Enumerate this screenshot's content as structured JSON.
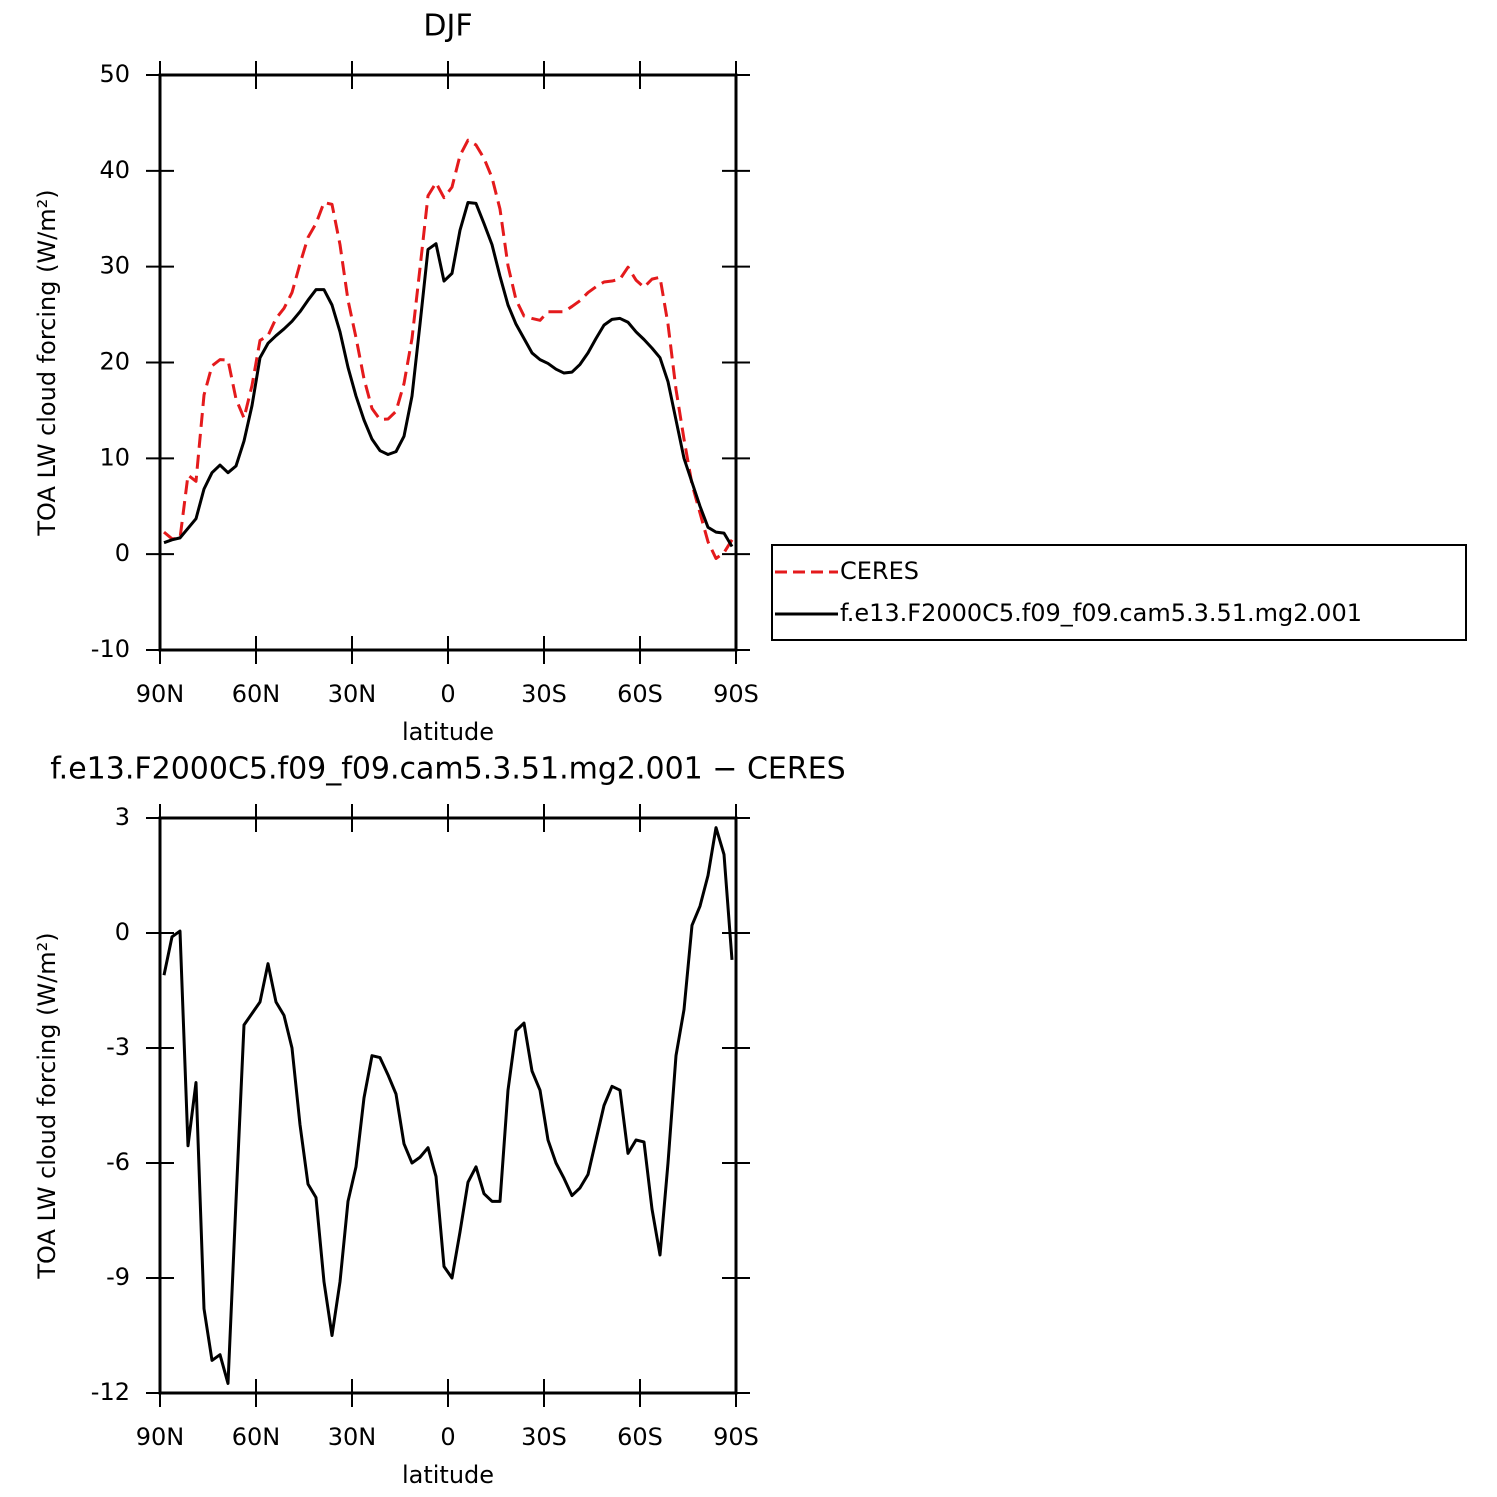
{
  "chart_data": [
    {
      "type": "line",
      "title": "DJF",
      "xlabel": "latitude",
      "ylabel": "TOA LW cloud forcing (W/m²)",
      "x": [
        88.75,
        86.25,
        83.75,
        81.25,
        78.75,
        76.25,
        73.75,
        71.25,
        68.75,
        66.25,
        63.75,
        61.25,
        58.75,
        56.25,
        53.75,
        51.25,
        48.75,
        46.25,
        43.75,
        41.25,
        38.75,
        36.25,
        33.75,
        31.25,
        28.75,
        26.25,
        23.75,
        21.25,
        18.75,
        16.25,
        13.75,
        11.25,
        8.75,
        6.25,
        3.75,
        1.25,
        -1.25,
        -3.75,
        -6.25,
        -8.75,
        -11.25,
        -13.75,
        -16.25,
        -18.75,
        -21.25,
        -23.75,
        -26.25,
        -28.75,
        -31.25,
        -33.75,
        -36.25,
        -38.75,
        -41.25,
        -43.75,
        -46.25,
        -48.75,
        -51.25,
        -53.75,
        -56.25,
        -58.75,
        -61.25,
        -63.75,
        -66.25,
        -68.75,
        -71.25,
        -73.75,
        -76.25,
        -78.75,
        -81.25,
        -83.75,
        -86.25,
        -88.75
      ],
      "series": [
        {
          "name": "CERES",
          "color": "#e41a1c",
          "dashed": true,
          "values": [
            2.3,
            1.6,
            1.65,
            8.25,
            7.6,
            16.6,
            19.65,
            20.3,
            20.25,
            16.2,
            14.2,
            17.6,
            22.3,
            22.8,
            24.6,
            25.65,
            27.3,
            30.3,
            33.05,
            34.5,
            36.7,
            36.5,
            32.3,
            26.5,
            22.6,
            18.3,
            15.2,
            14.05,
            14.1,
            14.9,
            17.8,
            22.5,
            29.85,
            37.4,
            38.75,
            37.2,
            38.3,
            41.6,
            43.2,
            42.7,
            41.3,
            39.3,
            36,
            30.1,
            26.55,
            24.85,
            24.6,
            24.4,
            25.3,
            25.3,
            25.3,
            25.85,
            26.45,
            27.3,
            27.9,
            28.4,
            28.5,
            28.7,
            29.95,
            28.6,
            27.85,
            28.7,
            28.9,
            24,
            17.2,
            12,
            7.3,
            4.3,
            1.3,
            -0.45,
            0.15,
            1.5
          ]
        },
        {
          "name": "f.e13.F2000C5.f09_f09.cam5.3.51.mg2.001",
          "color": "#000000",
          "dashed": false,
          "values": [
            1.2,
            1.5,
            1.7,
            2.7,
            3.7,
            6.8,
            8.5,
            9.3,
            8.5,
            9.2,
            11.8,
            15.5,
            20.5,
            22,
            22.8,
            23.5,
            24.3,
            25.3,
            26.5,
            27.6,
            27.6,
            26,
            23.2,
            19.5,
            16.5,
            14,
            12,
            10.8,
            10.4,
            10.7,
            12.3,
            16.5,
            24,
            31.8,
            32.4,
            28.5,
            29.3,
            33.8,
            36.7,
            36.6,
            34.5,
            32.3,
            29,
            26,
            24,
            22.5,
            21,
            20.3,
            19.9,
            19.3,
            18.9,
            19,
            19.8,
            21,
            22.5,
            23.9,
            24.5,
            24.6,
            24.2,
            23.2,
            22.4,
            21.5,
            20.5,
            18,
            14,
            10,
            7.5,
            5,
            2.8,
            2.3,
            2.2,
            0.8
          ]
        }
      ],
      "xlim": [
        90,
        -90
      ],
      "xticks": [
        {
          "value": 90,
          "label": "90N"
        },
        {
          "value": 60,
          "label": "60N"
        },
        {
          "value": 30,
          "label": "30N"
        },
        0,
        {
          "value": -30,
          "label": "30S"
        },
        {
          "value": -60,
          "label": "60S"
        },
        {
          "value": -90,
          "label": "90S"
        }
      ],
      "ylim": [
        -10,
        50
      ],
      "yticks": [
        -10,
        0,
        10,
        20,
        30,
        40,
        50
      ],
      "legend": "right"
    },
    {
      "type": "line",
      "title": "f.e13.F2000C5.f09_f09.cam5.3.51.mg2.001 − CERES",
      "xlabel": "latitude",
      "ylabel": "TOA LW cloud forcing (W/m²)",
      "x": [
        88.75,
        86.25,
        83.75,
        81.25,
        78.75,
        76.25,
        73.75,
        71.25,
        68.75,
        66.25,
        63.75,
        61.25,
        58.75,
        56.25,
        53.75,
        51.25,
        48.75,
        46.25,
        43.75,
        41.25,
        38.75,
        36.25,
        33.75,
        31.25,
        28.75,
        26.25,
        23.75,
        21.25,
        18.75,
        16.25,
        13.75,
        11.25,
        8.75,
        6.25,
        3.75,
        1.25,
        -1.25,
        -3.75,
        -6.25,
        -8.75,
        -11.25,
        -13.75,
        -16.25,
        -18.75,
        -21.25,
        -23.75,
        -26.25,
        -28.75,
        -31.25,
        -33.75,
        -36.25,
        -38.75,
        -41.25,
        -43.75,
        -46.25,
        -48.75,
        -51.25,
        -53.75,
        -56.25,
        -58.75,
        -61.25,
        -63.75,
        -66.25,
        -68.75,
        -71.25,
        -73.75,
        -76.25,
        -78.75,
        -81.25,
        -83.75,
        -86.25,
        -88.75
      ],
      "values": [
        -1.1,
        -0.1,
        0.05,
        -5.55,
        -3.9,
        -9.8,
        -11.15,
        -11,
        -11.75,
        -7,
        -2.4,
        -2.1,
        -1.8,
        -0.8,
        -1.8,
        -2.15,
        -3,
        -5,
        -6.55,
        -6.9,
        -9.1,
        -10.5,
        -9.1,
        -7,
        -6.1,
        -4.3,
        -3.2,
        -3.25,
        -3.7,
        -4.2,
        -5.5,
        -6,
        -5.85,
        -5.6,
        -6.35,
        -8.7,
        -9,
        -7.8,
        -6.5,
        -6.1,
        -6.8,
        -7,
        -7,
        -4.1,
        -2.55,
        -2.35,
        -3.6,
        -4.1,
        -5.4,
        -6,
        -6.4,
        -6.85,
        -6.65,
        -6.3,
        -5.4,
        -4.5,
        -4,
        -4.1,
        -5.75,
        -5.4,
        -5.45,
        -7.2,
        -8.4,
        -6,
        -3.2,
        -2,
        0.2,
        0.7,
        1.5,
        2.75,
        2.05,
        -0.7
      ],
      "color": "#000000",
      "xlim": [
        90,
        -90
      ],
      "xticks": [
        {
          "value": 90,
          "label": "90N"
        },
        {
          "value": 60,
          "label": "60N"
        },
        {
          "value": 30,
          "label": "30N"
        },
        0,
        {
          "value": -30,
          "label": "30S"
        },
        {
          "value": -60,
          "label": "60S"
        },
        {
          "value": -90,
          "label": "90S"
        }
      ],
      "ylim": [
        -12,
        3
      ],
      "yticks": [
        -12,
        -9,
        -6,
        -3,
        0,
        3
      ]
    }
  ]
}
